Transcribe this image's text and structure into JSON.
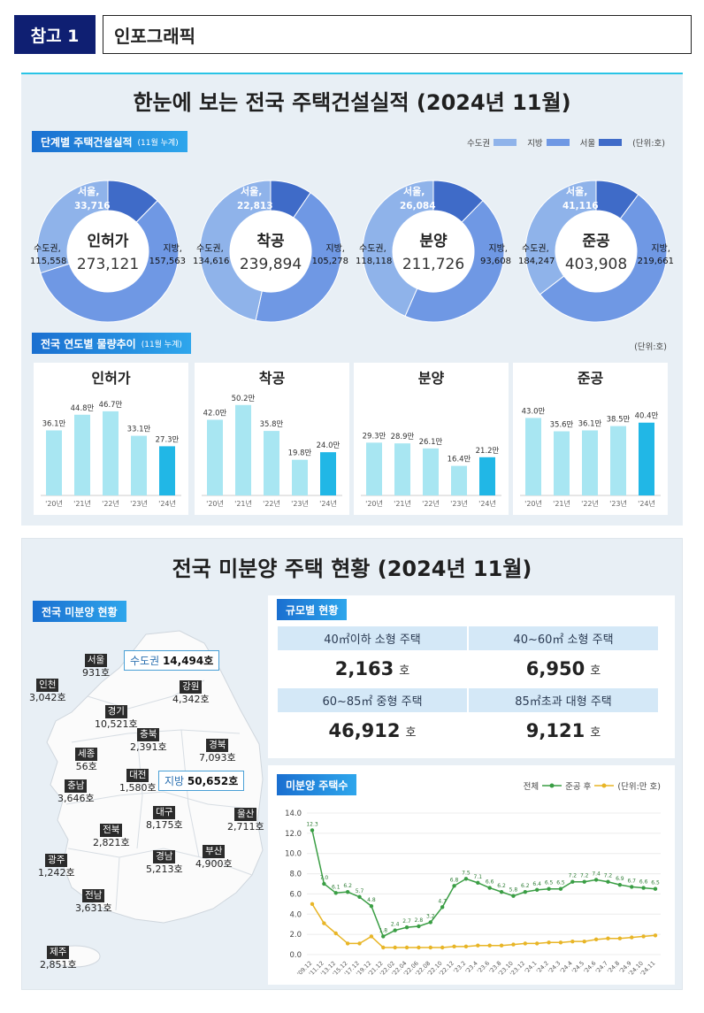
{
  "header": {
    "tag": "참고 1",
    "title": "인포그래픽"
  },
  "construction": {
    "title": "한눈에 보는 전국 주택건설실적 (2024년 11월)",
    "stage_badge": "단계별 주택건설실적",
    "stage_badge_sub": "(11월 누계)",
    "legend": {
      "capital": "수도권",
      "local": "지방",
      "seoul": "서울",
      "unit": "(단위:호)"
    },
    "colors": {
      "capital": "#8fb3ea",
      "local": "#6f98e4",
      "seoul": "#3f6bc8"
    },
    "donuts": [
      {
        "name": "인허가",
        "total": "273,121",
        "seoul_label": "서울,",
        "seoul": "33,716",
        "capital_label": "수도권,",
        "capital": "115,558",
        "local_label": "지방,",
        "local": "157,563",
        "seoul_v": 33716,
        "capital_v": 115558,
        "local_v": 157563
      },
      {
        "name": "착공",
        "total": "239,894",
        "seoul_label": "서울,",
        "seoul": "22,813",
        "capital_label": "수도권,",
        "capital": "134,616",
        "local_label": "지방,",
        "local": "105,278",
        "seoul_v": 22813,
        "capital_v": 134616,
        "local_v": 105278
      },
      {
        "name": "분양",
        "total": "211,726",
        "seoul_label": "서울,",
        "seoul": "26,084",
        "capital_label": "수도권,",
        "capital": "118,118",
        "local_label": "지방,",
        "local": "93,608",
        "seoul_v": 26084,
        "capital_v": 118118,
        "local_v": 93608
      },
      {
        "name": "준공",
        "total": "403,908",
        "seoul_label": "서울,",
        "seoul": "41,116",
        "capital_label": "수도권,",
        "capital": "184,247",
        "local_label": "지방,",
        "local": "219,661",
        "seoul_v": 41116,
        "capital_v": 184247,
        "local_v": 219661
      }
    ],
    "trend_badge": "전국 연도별 물량추이",
    "trend_badge_sub": "(11월 누계)",
    "trend_unit": "(단위:호)"
  },
  "chart_data": [
    {
      "type": "bar",
      "title": "인허가",
      "categories": [
        "'20년",
        "'21년",
        "'22년",
        "'23년",
        "'24년"
      ],
      "values": [
        36.1,
        44.8,
        46.7,
        33.1,
        27.3
      ],
      "labels": [
        "36.1만",
        "44.8만",
        "46.7만",
        "33.1만",
        "27.3만"
      ]
    },
    {
      "type": "bar",
      "title": "착공",
      "categories": [
        "'20년",
        "'21년",
        "'22년",
        "'23년",
        "'24년"
      ],
      "values": [
        42.0,
        50.2,
        35.8,
        19.8,
        24.0
      ],
      "labels": [
        "42.0만",
        "50.2만",
        "35.8만",
        "19.8만",
        "24.0만"
      ]
    },
    {
      "type": "bar",
      "title": "분양",
      "categories": [
        "'20년",
        "'21년",
        "'22년",
        "'23년",
        "'24년"
      ],
      "values": [
        29.3,
        28.9,
        26.1,
        16.4,
        21.2
      ],
      "labels": [
        "29.3만",
        "28.9만",
        "26.1만",
        "16.4만",
        "21.2만"
      ]
    },
    {
      "type": "bar",
      "title": "준공",
      "categories": [
        "'20년",
        "'21년",
        "'22년",
        "'23년",
        "'24년"
      ],
      "values": [
        43.0,
        35.6,
        36.1,
        38.5,
        40.4
      ],
      "labels": [
        "43.0만",
        "35.6만",
        "36.1만",
        "38.5만",
        "40.4만"
      ]
    },
    {
      "type": "line",
      "title": "미분양 주택수",
      "x": [
        "'09.12",
        "'11.12",
        "'13.12",
        "'15.12",
        "'17.12",
        "'19.12",
        "'21.12",
        "'22.02",
        "'22.04",
        "'22.06",
        "'22.08",
        "'22.10",
        "'22.12",
        "'23.2",
        "'23.4",
        "'23.6",
        "'23.8",
        "'23.10",
        "'23.12",
        "'24.1",
        "'24.2",
        "'24.3",
        "'24.4",
        "'24.5",
        "'24.6",
        "'24.7",
        "'24.8",
        "'24.9",
        "'24.10",
        "'24.11"
      ],
      "series": [
        {
          "name": "전체",
          "values": [
            12.3,
            7.0,
            6.1,
            6.2,
            5.7,
            4.8,
            1.8,
            2.4,
            2.7,
            2.8,
            3.2,
            4.7,
            6.8,
            7.5,
            7.1,
            6.6,
            6.2,
            5.8,
            6.2,
            6.4,
            6.5,
            6.5,
            7.2,
            7.2,
            7.4,
            7.2,
            6.9,
            6.7,
            6.6,
            6.5
          ]
        },
        {
          "name": "준공 후",
          "values": [
            5.0,
            3.1,
            2.1,
            1.1,
            1.1,
            1.8,
            0.7,
            0.7,
            0.7,
            0.7,
            0.7,
            0.7,
            0.8,
            0.8,
            0.9,
            0.9,
            0.9,
            1.0,
            1.1,
            1.1,
            1.2,
            1.2,
            1.3,
            1.3,
            1.5,
            1.6,
            1.6,
            1.7,
            1.8,
            1.9
          ]
        }
      ],
      "point_labels": [
        "12.3",
        "7.0",
        "6.1",
        "6.2",
        "5.7",
        "4.8",
        "1.8",
        "2.4",
        "2.7",
        "2.8",
        "3.2",
        "4.7",
        "6.8",
        "7.5",
        "7.1",
        "6.6",
        "6.2",
        "5.8",
        "6.2",
        "6.4",
        "6.5",
        "6.5",
        "7.2",
        "7.2",
        "7.4",
        "7.2",
        "6.9",
        "6.7",
        "6.6",
        "6.5"
      ],
      "yticks": [
        "0.0",
        "2.0",
        "4.0",
        "6.0",
        "8.0",
        "10.0",
        "12.0",
        "14.0"
      ],
      "ylim": [
        0,
        14
      ],
      "colors": {
        "전체": "#3a9e44",
        "준공 후": "#e8b526"
      }
    }
  ],
  "unsold": {
    "title": "전국 미분양 주택 현황 (2024년 11월)",
    "map_badge": "전국 미분양 현황",
    "capital_box": {
      "label": "수도권",
      "value": "14,494호"
    },
    "local_box": {
      "label": "지방",
      "value": "50,652호"
    },
    "regions": [
      {
        "name": "서울",
        "value": "931호"
      },
      {
        "name": "인천",
        "value": "3,042호"
      },
      {
        "name": "강원",
        "value": "4,342호"
      },
      {
        "name": "경기",
        "value": "10,521호"
      },
      {
        "name": "충북",
        "value": "2,391호"
      },
      {
        "name": "경북",
        "value": "7,093호"
      },
      {
        "name": "세종",
        "value": "56호"
      },
      {
        "name": "충남",
        "value": "3,646호"
      },
      {
        "name": "대전",
        "value": "1,580호"
      },
      {
        "name": "대구",
        "value": "8,175호"
      },
      {
        "name": "울산",
        "value": "2,711호"
      },
      {
        "name": "전북",
        "value": "2,821호"
      },
      {
        "name": "부산",
        "value": "4,900호"
      },
      {
        "name": "경남",
        "value": "5,213호"
      },
      {
        "name": "광주",
        "value": "1,242호"
      },
      {
        "name": "전남",
        "value": "3,631호"
      },
      {
        "name": "제주",
        "value": "2,851호"
      }
    ],
    "scale_badge": "규모별 현황",
    "scale": [
      {
        "label": "40㎡이하 소형 주택",
        "value": "2,163",
        "unit": "호"
      },
      {
        "label": "40~60㎡ 소형 주택",
        "value": "6,950",
        "unit": "호"
      },
      {
        "label": "60~85㎡ 중형 주택",
        "value": "46,912",
        "unit": "호"
      },
      {
        "label": "85㎡초과 대형 주택",
        "value": "9,121",
        "unit": "호"
      }
    ],
    "line_badge": "미분양 주택수",
    "line_legend": {
      "total": "전체",
      "after": "준공 후",
      "unit": "(단위:만 호)"
    }
  }
}
